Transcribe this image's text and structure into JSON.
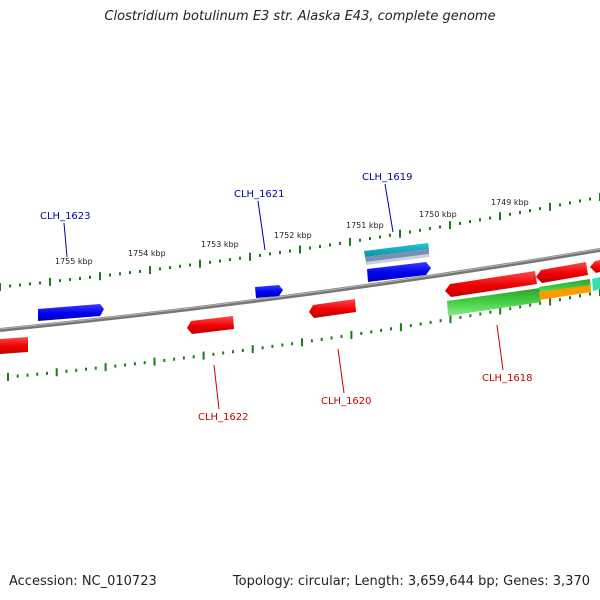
{
  "title": "Clostridium botulinum E3 str. Alaska E43, complete genome",
  "footer": {
    "accession": "Accession: NC_010723",
    "summary": "Topology: circular; Length: 3,659,644 bp; Genes: 3,370"
  },
  "scale_labels": [
    "1755 kbp",
    "1754 kbp",
    "1753 kbp",
    "1752 kbp",
    "1751 kbp",
    "1750 kbp",
    "1749 kbp"
  ],
  "gene_labels": {
    "top": [
      "CLH_1623",
      "CLH_1621",
      "CLH_1619"
    ],
    "bottom": [
      "CLH_1622",
      "CLH_1620",
      "CLH_1618"
    ]
  },
  "colors": {
    "forward_label": "#0000aa",
    "reverse_label": "#cc0000",
    "forward_cds": "#0000ee",
    "reverse_cds": "#ff1a1a",
    "ticks": "#1a7a1a",
    "backbone": "#777777",
    "rna_cyan": "#22c5d6",
    "green_feature": "#33cc33",
    "orange_feature": "#ff9900",
    "teal_feature": "#33e0b0"
  }
}
